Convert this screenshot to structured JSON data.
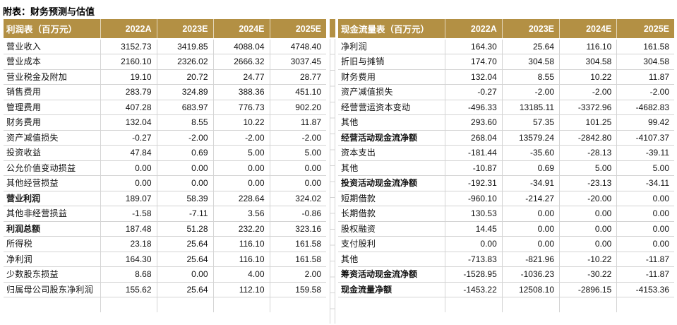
{
  "page": {
    "title": "附表：财务预测与估值"
  },
  "colors": {
    "header_bg": "#B39044",
    "grid_line": "#D4D4D4",
    "header_text": "#FFFFFF",
    "body_text": "#111111"
  },
  "income_statement": {
    "header": [
      "利润表（百万元）",
      "2022A",
      "2023E",
      "2024E",
      "2025E"
    ],
    "rows": [
      {
        "label": "营业收入",
        "values": [
          "3152.73",
          "3419.85",
          "4088.04",
          "4748.40"
        ],
        "bold": false
      },
      {
        "label": "营业成本",
        "values": [
          "2160.10",
          "2326.02",
          "2666.32",
          "3037.45"
        ],
        "bold": false
      },
      {
        "label": "营业税金及附加",
        "values": [
          "19.10",
          "20.72",
          "24.77",
          "28.77"
        ],
        "bold": false
      },
      {
        "label": "销售费用",
        "values": [
          "283.79",
          "324.89",
          "388.36",
          "451.10"
        ],
        "bold": false
      },
      {
        "label": "管理费用",
        "values": [
          "407.28",
          "683.97",
          "776.73",
          "902.20"
        ],
        "bold": false
      },
      {
        "label": "财务费用",
        "values": [
          "132.04",
          "8.55",
          "10.22",
          "11.87"
        ],
        "bold": false
      },
      {
        "label": "资产减值损失",
        "values": [
          "-0.27",
          "-2.00",
          "-2.00",
          "-2.00"
        ],
        "bold": false
      },
      {
        "label": "投资收益",
        "values": [
          "47.84",
          "0.69",
          "5.00",
          "5.00"
        ],
        "bold": false
      },
      {
        "label": "公允价值变动损益",
        "values": [
          "0.00",
          "0.00",
          "0.00",
          "0.00"
        ],
        "bold": false
      },
      {
        "label": "其他经营损益",
        "values": [
          "0.00",
          "0.00",
          "0.00",
          "0.00"
        ],
        "bold": false
      },
      {
        "label": "营业利润",
        "values": [
          "189.07",
          "58.39",
          "228.64",
          "324.02"
        ],
        "bold": true
      },
      {
        "label": "其他非经营损益",
        "values": [
          "-1.58",
          "-7.11",
          "3.56",
          "-0.86"
        ],
        "bold": false
      },
      {
        "label": "利润总额",
        "values": [
          "187.48",
          "51.28",
          "232.20",
          "323.16"
        ],
        "bold": true
      },
      {
        "label": "所得税",
        "values": [
          "23.18",
          "25.64",
          "116.10",
          "161.58"
        ],
        "bold": false
      },
      {
        "label": "净利润",
        "values": [
          "164.30",
          "25.64",
          "116.10",
          "161.58"
        ],
        "bold": false
      },
      {
        "label": "少数股东损益",
        "values": [
          "8.68",
          "0.00",
          "4.00",
          "2.00"
        ],
        "bold": false
      },
      {
        "label": "归属母公司股东净利润",
        "values": [
          "155.62",
          "25.64",
          "112.10",
          "159.58"
        ],
        "bold": false
      }
    ]
  },
  "cash_flow_statement": {
    "header": [
      "现金流量表（百万元）",
      "2022A",
      "2023E",
      "2024E",
      "2025E"
    ],
    "rows": [
      {
        "label": "净利润",
        "values": [
          "164.30",
          "25.64",
          "116.10",
          "161.58"
        ],
        "bold": false
      },
      {
        "label": "折旧与摊销",
        "values": [
          "174.70",
          "304.58",
          "304.58",
          "304.58"
        ],
        "bold": false
      },
      {
        "label": "财务费用",
        "values": [
          "132.04",
          "8.55",
          "10.22",
          "11.87"
        ],
        "bold": false
      },
      {
        "label": "资产减值损失",
        "values": [
          "-0.27",
          "-2.00",
          "-2.00",
          "-2.00"
        ],
        "bold": false
      },
      {
        "label": "经营营运资本变动",
        "values": [
          "-496.33",
          "13185.11",
          "-3372.96",
          "-4682.83"
        ],
        "bold": false
      },
      {
        "label": "其他",
        "values": [
          "293.60",
          "57.35",
          "101.25",
          "99.42"
        ],
        "bold": false
      },
      {
        "label": "经营活动现金流净额",
        "values": [
          "268.04",
          "13579.24",
          "-2842.80",
          "-4107.37"
        ],
        "bold": true
      },
      {
        "label": "资本支出",
        "values": [
          "-181.44",
          "-35.60",
          "-28.13",
          "-39.11"
        ],
        "bold": false
      },
      {
        "label": "其他",
        "values": [
          "-10.87",
          "0.69",
          "5.00",
          "5.00"
        ],
        "bold": false
      },
      {
        "label": "投资活动现金流净额",
        "values": [
          "-192.31",
          "-34.91",
          "-23.13",
          "-34.11"
        ],
        "bold": true
      },
      {
        "label": "短期借款",
        "values": [
          "-960.10",
          "-214.27",
          "-20.00",
          "0.00"
        ],
        "bold": false
      },
      {
        "label": "长期借款",
        "values": [
          "130.53",
          "0.00",
          "0.00",
          "0.00"
        ],
        "bold": false
      },
      {
        "label": "股权融资",
        "values": [
          "14.45",
          "0.00",
          "0.00",
          "0.00"
        ],
        "bold": false
      },
      {
        "label": "支付股利",
        "values": [
          "0.00",
          "0.00",
          "0.00",
          "0.00"
        ],
        "bold": false
      },
      {
        "label": "其他",
        "values": [
          "-713.83",
          "-821.96",
          "-10.22",
          "-11.87"
        ],
        "bold": false
      },
      {
        "label": "筹资活动现金流净额",
        "values": [
          "-1528.95",
          "-1036.23",
          "-30.22",
          "-11.87"
        ],
        "bold": true
      },
      {
        "label": "现金流量净额",
        "values": [
          "-1453.22",
          "12508.10",
          "-2896.15",
          "-4153.36"
        ],
        "bold": true
      }
    ]
  }
}
